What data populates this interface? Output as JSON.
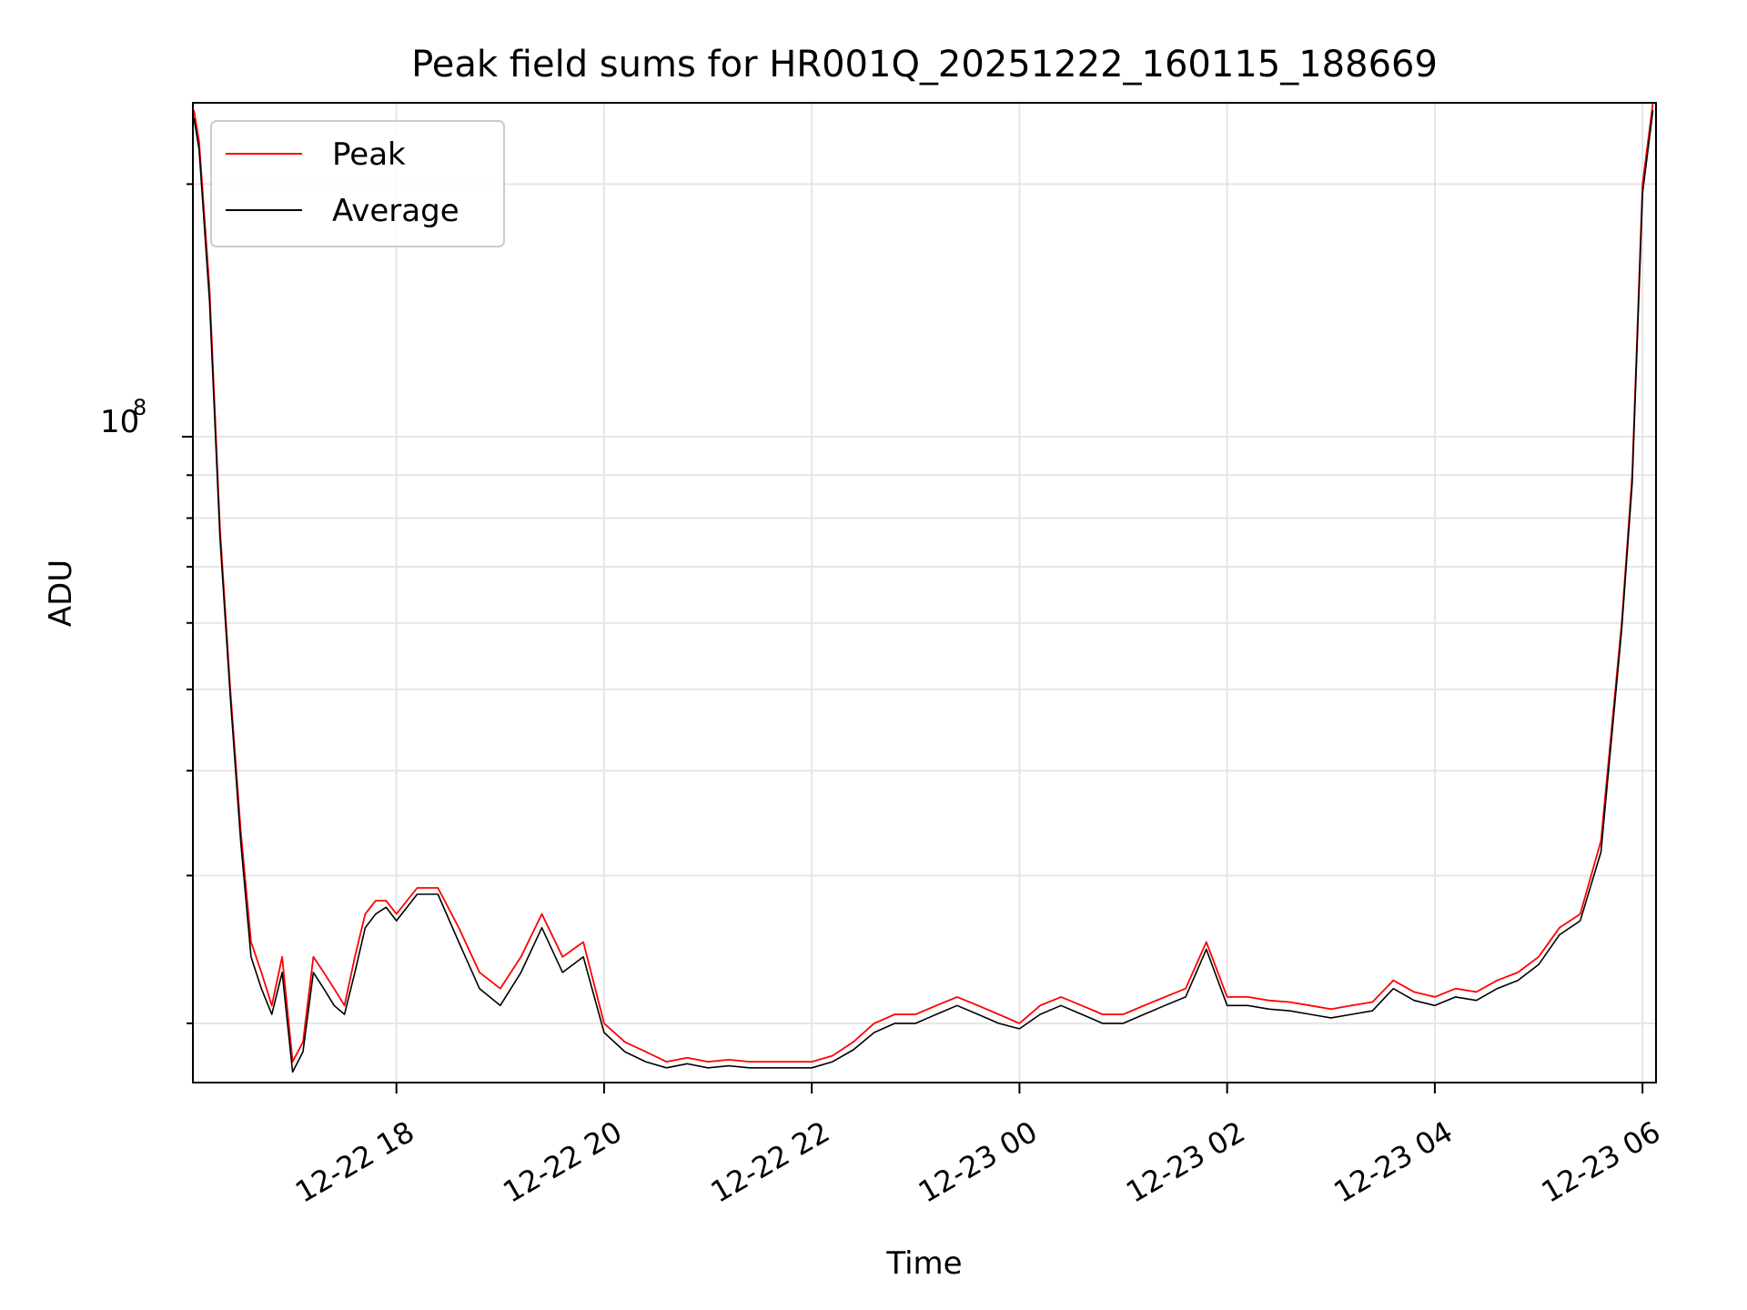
{
  "chart_data": {
    "type": "line",
    "title": "Peak field sums for HR001Q_20251222_160115_188669",
    "xlabel": "Time",
    "ylabel": "ADU",
    "yscale": "log",
    "ylim": [
      17000000,
      250000000
    ],
    "xlim_hours": [
      -1.96,
      12.13
    ],
    "x_tick_labels": [
      "12-22 18",
      "12-22 20",
      "12-22 22",
      "12-23 00",
      "12-23 02",
      "12-23 04",
      "12-23 06"
    ],
    "x_tick_hours": [
      0,
      2,
      4,
      6,
      8,
      10,
      12
    ],
    "y_major_tick_label": "10",
    "y_major_tick_exponent": "8",
    "y_major_tick_value": 100000000,
    "y_minor_tick_values": [
      20000000,
      30000000,
      40000000,
      50000000,
      60000000,
      70000000,
      80000000,
      90000000,
      200000000
    ],
    "grid": true,
    "legend": {
      "position": "top-left"
    },
    "x_hours": [
      -1.95,
      -1.9,
      -1.8,
      -1.7,
      -1.6,
      -1.5,
      -1.4,
      -1.3,
      -1.2,
      -1.1,
      -1.0,
      -0.9,
      -0.8,
      -0.7,
      -0.6,
      -0.5,
      -0.4,
      -0.3,
      -0.2,
      -0.1,
      0.0,
      0.2,
      0.4,
      0.6,
      0.8,
      1.0,
      1.2,
      1.4,
      1.6,
      1.8,
      2.0,
      2.2,
      2.4,
      2.6,
      2.8,
      3.0,
      3.2,
      3.4,
      3.6,
      3.8,
      4.0,
      4.2,
      4.4,
      4.6,
      4.8,
      5.0,
      5.2,
      5.4,
      5.6,
      5.8,
      6.0,
      6.2,
      6.4,
      6.6,
      6.8,
      7.0,
      7.2,
      7.4,
      7.6,
      7.8,
      8.0,
      8.2,
      8.4,
      8.6,
      8.8,
      9.0,
      9.2,
      9.4,
      9.6,
      9.8,
      10.0,
      10.2,
      10.4,
      10.6,
      10.8,
      11.0,
      11.2,
      11.4,
      11.6,
      11.8,
      11.9,
      12.0,
      12.1
    ],
    "series": [
      {
        "name": "Peak",
        "color": "#ff0000",
        "values": [
          245000000,
          225000000,
          150000000,
          78000000,
          50000000,
          34000000,
          25000000,
          23000000,
          21000000,
          24000000,
          18000000,
          19000000,
          24000000,
          23000000,
          22000000,
          21000000,
          24000000,
          27000000,
          28000000,
          28000000,
          27000000,
          29000000,
          29000000,
          26000000,
          23000000,
          22000000,
          24000000,
          27000000,
          24000000,
          25000000,
          20000000,
          19000000,
          18500000,
          18000000,
          18200000,
          18000000,
          18100000,
          18000000,
          18000000,
          18000000,
          18000000,
          18300000,
          19000000,
          20000000,
          20500000,
          20500000,
          21000000,
          21500000,
          21000000,
          20500000,
          20000000,
          21000000,
          21500000,
          21000000,
          20500000,
          20500000,
          21000000,
          21500000,
          22000000,
          25000000,
          21500000,
          21500000,
          21300000,
          21200000,
          21000000,
          20800000,
          21000000,
          21200000,
          22500000,
          21800000,
          21500000,
          22000000,
          21800000,
          22500000,
          23000000,
          24000000,
          26000000,
          27000000,
          33000000,
          60000000,
          90000000,
          200000000,
          250000000
        ]
      },
      {
        "name": "Average",
        "color": "#000000",
        "values": [
          240000000,
          220000000,
          145000000,
          76000000,
          49000000,
          33000000,
          24000000,
          22000000,
          20500000,
          23000000,
          17500000,
          18500000,
          23000000,
          22000000,
          21000000,
          20500000,
          23000000,
          26000000,
          27000000,
          27500000,
          26500000,
          28500000,
          28500000,
          25000000,
          22000000,
          21000000,
          23000000,
          26000000,
          23000000,
          24000000,
          19500000,
          18500000,
          18000000,
          17700000,
          17900000,
          17700000,
          17800000,
          17700000,
          17700000,
          17700000,
          17700000,
          18000000,
          18600000,
          19500000,
          20000000,
          20000000,
          20500000,
          21000000,
          20500000,
          20000000,
          19700000,
          20500000,
          21000000,
          20500000,
          20000000,
          20000000,
          20500000,
          21000000,
          21500000,
          24500000,
          21000000,
          21000000,
          20800000,
          20700000,
          20500000,
          20300000,
          20500000,
          20700000,
          22000000,
          21300000,
          21000000,
          21500000,
          21300000,
          22000000,
          22500000,
          23500000,
          25500000,
          26500000,
          32000000,
          59000000,
          88000000,
          195000000,
          245000000
        ]
      }
    ]
  }
}
